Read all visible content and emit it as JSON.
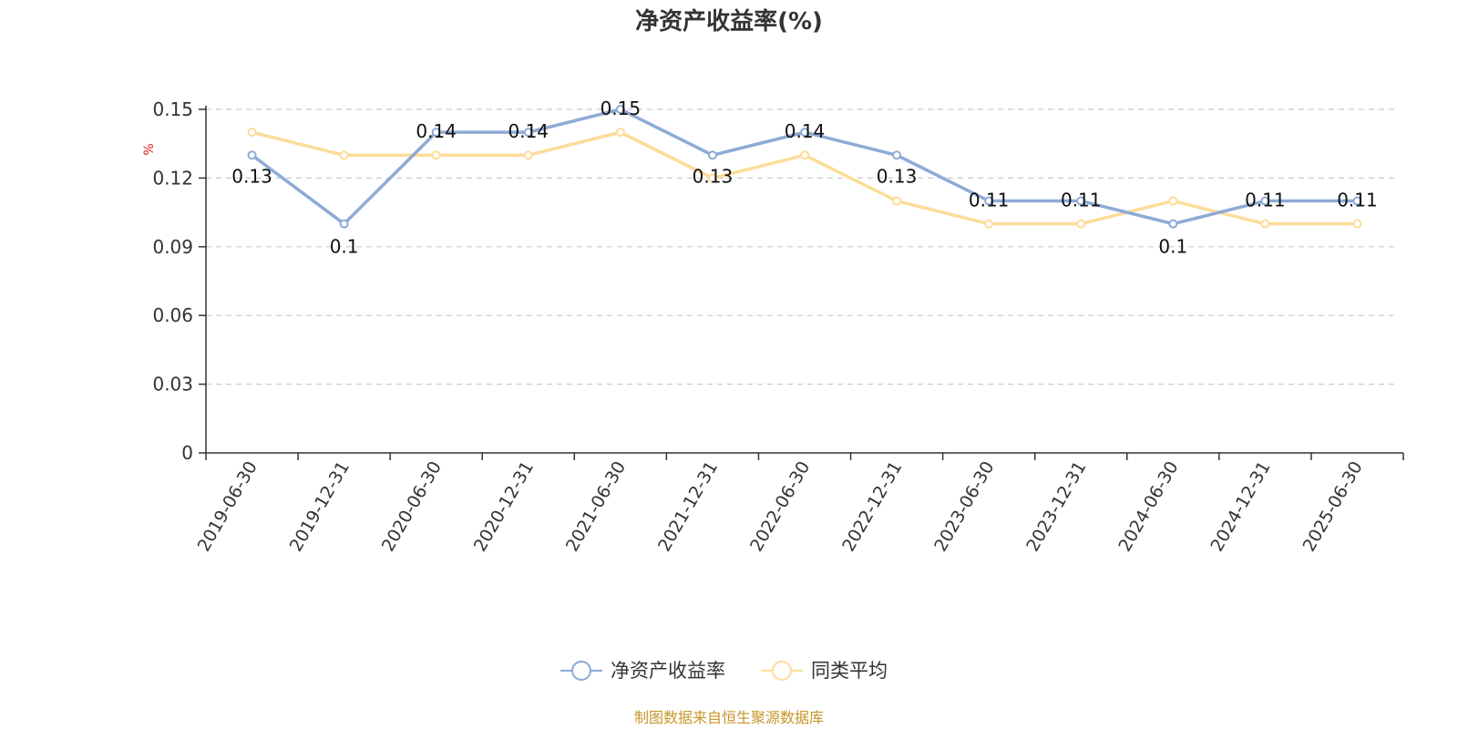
{
  "chart_data": {
    "type": "line",
    "title": "净资产收益率(%)",
    "ylabel": "%",
    "xlabel": "",
    "categories": [
      "2019-06-30",
      "2019-12-31",
      "2020-06-30",
      "2020-12-31",
      "2021-06-30",
      "2021-12-31",
      "2022-06-30",
      "2022-12-31",
      "2023-06-30",
      "2023-12-31",
      "2024-06-30",
      "2024-12-31",
      "2025-06-30"
    ],
    "ylim": [
      0,
      0.15
    ],
    "yticks": [
      "0",
      "0.03",
      "0.06",
      "0.09",
      "0.12",
      "0.15"
    ],
    "grid": true,
    "legend_position": "bottom",
    "series": [
      {
        "name": "净资产收益率",
        "color": "#8eaad6",
        "values": [
          0.13,
          0.1,
          0.14,
          0.14,
          0.15,
          0.13,
          0.14,
          0.13,
          0.11,
          0.11,
          0.1,
          0.11,
          0.11
        ],
        "labels": [
          "0.13",
          "0.1",
          "0.14",
          "0.14",
          "0.15",
          "0.13",
          "0.14",
          "0.13",
          "0.11",
          "0.11",
          "0.1",
          "0.11",
          "0.11"
        ]
      },
      {
        "name": "同类平均",
        "color": "#fddc9a",
        "values": [
          0.14,
          0.13,
          0.13,
          0.13,
          0.14,
          0.12,
          0.13,
          0.11,
          0.1,
          0.1,
          0.11,
          0.1,
          0.1
        ]
      }
    ],
    "source": "制图数据来自恒生聚源数据库"
  }
}
